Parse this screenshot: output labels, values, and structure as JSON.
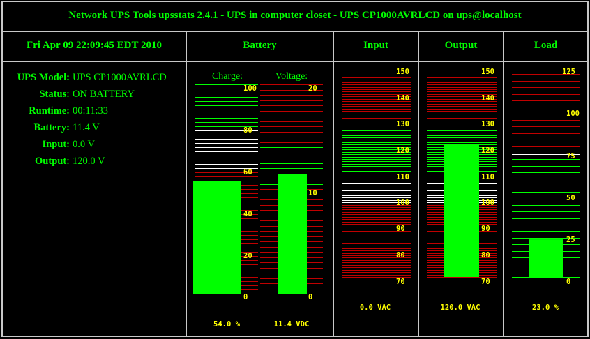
{
  "title": "Network UPS Tools upsstats 2.4.1 - UPS in computer closet - UPS CP1000AVRLCD on ups@localhost",
  "datetime": "Fri Apr 09 22:09:45 EDT 2010",
  "columns": {
    "battery": "Battery",
    "input": "Input",
    "output": "Output",
    "load": "Load"
  },
  "info": [
    {
      "key": "UPS Model:",
      "value": "UPS CP1000AVRLCD"
    },
    {
      "key": "Status:",
      "value": "ON BATTERY"
    },
    {
      "key": "Runtime:",
      "value": "00:11:33"
    },
    {
      "key": "Battery:",
      "value": "11.4 V"
    },
    {
      "key": "Input:",
      "value": "0.0 V"
    },
    {
      "key": "Output:",
      "value": "120.0 V"
    }
  ],
  "meters": {
    "charge": {
      "label": "Charge:",
      "min": 0,
      "max": 100,
      "value": 54.0,
      "readout": "54.0 %",
      "ticks": [
        "0",
        "20",
        "40",
        "60",
        "80",
        "100"
      ]
    },
    "voltage": {
      "label": "Voltage:",
      "min": 0,
      "max": 20,
      "value": 11.4,
      "readout": "11.4 VDC",
      "ticks": [
        "0",
        "10",
        "20"
      ]
    },
    "input": {
      "min": 65,
      "max": 152,
      "value": 0.0,
      "readout": "0.0 VAC",
      "ticks": [
        "70",
        "80",
        "90",
        "100",
        "110",
        "120",
        "130",
        "140",
        "150"
      ]
    },
    "output": {
      "min": 65,
      "max": 152,
      "value": 120.0,
      "readout": "120.0 VAC",
      "ticks": [
        "70",
        "80",
        "90",
        "100",
        "110",
        "120",
        "130",
        "140",
        "150"
      ]
    },
    "load": {
      "min": 0,
      "max": 128,
      "value": 23.0,
      "readout": "23.0 %",
      "ticks": [
        "0",
        "25",
        "50",
        "75",
        "100",
        "125"
      ]
    }
  },
  "colors": {
    "green": "#00ff00",
    "red": "#c00000",
    "white": "#ffffff",
    "yellow": "#ffff00",
    "grid": "#c8c8c8"
  }
}
